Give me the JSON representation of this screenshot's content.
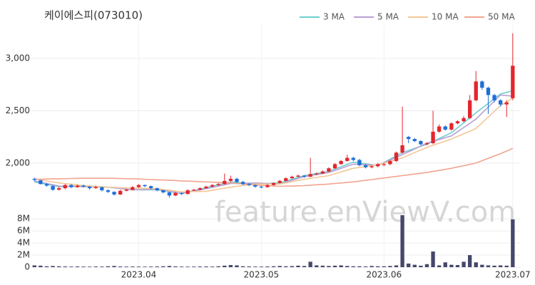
{
  "chart_data": {
    "type": "candlestick",
    "title": "케이에스피(073010)",
    "watermark": "feature.enViewV.com",
    "categories": [
      null,
      null,
      null,
      null,
      null,
      null,
      null,
      null,
      null,
      null,
      null,
      null,
      null,
      null,
      null,
      null,
      null,
      "2023.04",
      null,
      null,
      null,
      null,
      null,
      null,
      null,
      null,
      null,
      null,
      null,
      null,
      null,
      null,
      null,
      null,
      null,
      null,
      null,
      "2023.05",
      null,
      null,
      null,
      null,
      null,
      null,
      null,
      null,
      null,
      null,
      null,
      null,
      null,
      null,
      null,
      null,
      null,
      null,
      null,
      "2023.06",
      null,
      null,
      null,
      null,
      null,
      null,
      null,
      null,
      null,
      null,
      null,
      null,
      null,
      null,
      null,
      null,
      null,
      null,
      null,
      null,
      "2023.07"
    ],
    "ohlc": [
      [
        1850,
        1860,
        1825,
        1840
      ],
      [
        1835,
        1840,
        1795,
        1800
      ],
      [
        1800,
        1810,
        1775,
        1785
      ],
      [
        1780,
        1790,
        1735,
        1745
      ],
      [
        1745,
        1775,
        1740,
        1760
      ],
      [
        1760,
        1800,
        1750,
        1790
      ],
      [
        1790,
        1800,
        1760,
        1770
      ],
      [
        1770,
        1795,
        1765,
        1785
      ],
      [
        1785,
        1795,
        1765,
        1775
      ],
      [
        1775,
        1780,
        1745,
        1760
      ],
      [
        1760,
        1785,
        1755,
        1770
      ],
      [
        1770,
        1775,
        1730,
        1740
      ],
      [
        1740,
        1750,
        1715,
        1725
      ],
      [
        1725,
        1730,
        1690,
        1700
      ],
      [
        1700,
        1745,
        1695,
        1735
      ],
      [
        1735,
        1755,
        1730,
        1745
      ],
      [
        1745,
        1780,
        1740,
        1770
      ],
      [
        1770,
        1800,
        1765,
        1790
      ],
      [
        1790,
        1795,
        1770,
        1780
      ],
      [
        1780,
        1785,
        1750,
        1760
      ],
      [
        1760,
        1765,
        1730,
        1740
      ],
      [
        1740,
        1745,
        1710,
        1720
      ],
      [
        1720,
        1725,
        1670,
        1690
      ],
      [
        1690,
        1725,
        1685,
        1715
      ],
      [
        1715,
        1720,
        1695,
        1705
      ],
      [
        1705,
        1750,
        1700,
        1740
      ],
      [
        1740,
        1755,
        1735,
        1745
      ],
      [
        1745,
        1770,
        1740,
        1760
      ],
      [
        1760,
        1785,
        1755,
        1775
      ],
      [
        1775,
        1800,
        1770,
        1790
      ],
      [
        1790,
        1810,
        1780,
        1800
      ],
      [
        1800,
        1900,
        1795,
        1830
      ],
      [
        1830,
        1880,
        1820,
        1850
      ],
      [
        1850,
        1860,
        1810,
        1820
      ],
      [
        1820,
        1830,
        1790,
        1800
      ],
      [
        1800,
        1810,
        1780,
        1790
      ],
      [
        1790,
        1795,
        1765,
        1775
      ],
      [
        1775,
        1785,
        1760,
        1770
      ],
      [
        1770,
        1800,
        1765,
        1790
      ],
      [
        1790,
        1815,
        1785,
        1810
      ],
      [
        1810,
        1840,
        1805,
        1830
      ],
      [
        1830,
        1865,
        1825,
        1855
      ],
      [
        1855,
        1880,
        1850,
        1870
      ],
      [
        1870,
        1890,
        1865,
        1880
      ],
      [
        1880,
        1885,
        1860,
        1870
      ],
      [
        1870,
        2050,
        1865,
        1895
      ],
      [
        1895,
        1910,
        1885,
        1900
      ],
      [
        1900,
        1930,
        1895,
        1920
      ],
      [
        1920,
        1960,
        1915,
        1950
      ],
      [
        1950,
        2000,
        1945,
        1990
      ],
      [
        1990,
        2030,
        1985,
        2020
      ],
      [
        2020,
        2080,
        2015,
        2050
      ],
      [
        2050,
        2060,
        2020,
        2030
      ],
      [
        2030,
        2040,
        1970,
        1980
      ],
      [
        1980,
        1990,
        1950,
        1960
      ],
      [
        1960,
        1980,
        1950,
        1970
      ],
      [
        1970,
        2000,
        1960,
        1990
      ],
      [
        1985,
        2000,
        1970,
        1990
      ],
      [
        1990,
        2030,
        1980,
        2020
      ],
      [
        2020,
        2110,
        2010,
        2100
      ],
      [
        2100,
        2540,
        2090,
        2170
      ],
      [
        2250,
        2260,
        2190,
        2230
      ],
      [
        2230,
        2240,
        2200,
        2210
      ],
      [
        2210,
        2220,
        2170,
        2180
      ],
      [
        2180,
        2200,
        2170,
        2190
      ],
      [
        2190,
        2500,
        2180,
        2300
      ],
      [
        2300,
        2370,
        2290,
        2350
      ],
      [
        2350,
        2360,
        2310,
        2320
      ],
      [
        2320,
        2390,
        2310,
        2380
      ],
      [
        2380,
        2410,
        2370,
        2400
      ],
      [
        2400,
        2450,
        2390,
        2430
      ],
      [
        2430,
        2650,
        2420,
        2600
      ],
      [
        2600,
        2880,
        2590,
        2780
      ],
      [
        2780,
        2790,
        2700,
        2720
      ],
      [
        2720,
        2730,
        2470,
        2650
      ],
      [
        2650,
        2660,
        2580,
        2600
      ],
      [
        2600,
        2610,
        2540,
        2560
      ],
      [
        2560,
        2600,
        2440,
        2580
      ],
      [
        2620,
        3240,
        2600,
        2930
      ]
    ],
    "volume": [
      300000,
      250000,
      150000,
      200000,
      150000,
      120000,
      100000,
      120000,
      100000,
      90000,
      110000,
      100000,
      150000,
      200000,
      120000,
      100000,
      110000,
      100000,
      90000,
      100000,
      120000,
      150000,
      200000,
      130000,
      100000,
      90000,
      100000,
      110000,
      120000,
      100000,
      150000,
      250000,
      350000,
      300000,
      150000,
      120000,
      100000,
      100000,
      120000,
      150000,
      200000,
      150000,
      180000,
      250000,
      200000,
      900000,
      300000,
      250000,
      200000,
      250000,
      300000,
      200000,
      150000,
      150000,
      120000,
      200000,
      150000,
      150000,
      200000,
      300000,
      8600000,
      600000,
      400000,
      250000,
      500000,
      2600000,
      300000,
      800000,
      400000,
      350000,
      900000,
      2000000,
      800000,
      400000,
      300000,
      250000,
      300000,
      250000,
      7900000
    ],
    "series": [
      {
        "name": "3 MA",
        "color": "#6fcfcf",
        "values": [
          1820,
          1809,
          1798,
          1786,
          1775,
          1776,
          1778,
          1779,
          1780,
          1778,
          1775,
          1773,
          1770,
          1764,
          1758,
          1751,
          1745,
          1745,
          1745,
          1745,
          1745,
          1736,
          1728,
          1719,
          1710,
          1724,
          1738,
          1751,
          1765,
          1779,
          1793,
          1806,
          1820,
          1815,
          1810,
          1805,
          1800,
          1803,
          1805,
          1808,
          1810,
          1828,
          1845,
          1863,
          1880,
          1890,
          1900,
          1910,
          1920,
          1943,
          1965,
          1988,
          2010,
          2001,
          1993,
          1984,
          1975,
          2006,
          2038,
          2069,
          2100,
          2120,
          2140,
          2160,
          2180,
          2208,
          2235,
          2263,
          2290,
          2338,
          2385,
          2433,
          2480,
          2525,
          2570,
          2615,
          2660,
          2675,
          2690
        ]
      },
      {
        "name": "5 MA",
        "color": "#b8a0d4",
        "values": [
          1830,
          1818,
          1805,
          1793,
          1780,
          1779,
          1778,
          1776,
          1775,
          1774,
          1773,
          1771,
          1770,
          1764,
          1758,
          1751,
          1745,
          1746,
          1748,
          1749,
          1750,
          1740,
          1730,
          1720,
          1710,
          1721,
          1733,
          1744,
          1755,
          1768,
          1780,
          1793,
          1805,
          1806,
          1808,
          1809,
          1810,
          1808,
          1805,
          1803,
          1800,
          1818,
          1835,
          1853,
          1870,
          1880,
          1890,
          1900,
          1910,
          1930,
          1950,
          1970,
          1990,
          1988,
          1985,
          1983,
          1980,
          2005,
          2030,
          2055,
          2080,
          2108,
          2135,
          2163,
          2190,
          2208,
          2225,
          2243,
          2260,
          2300,
          2340,
          2380,
          2420,
          2478,
          2535,
          2593,
          2650,
          2645,
          2640
        ]
      },
      {
        "name": "10 MA",
        "color": "#f3c796",
        "values": [
          1850,
          1840,
          1830,
          1820,
          1810,
          1804,
          1798,
          1791,
          1785,
          1781,
          1778,
          1774,
          1770,
          1768,
          1765,
          1763,
          1760,
          1759,
          1758,
          1756,
          1755,
          1748,
          1740,
          1733,
          1725,
          1726,
          1728,
          1729,
          1730,
          1740,
          1750,
          1760,
          1770,
          1778,
          1785,
          1793,
          1800,
          1800,
          1800,
          1800,
          1800,
          1811,
          1823,
          1834,
          1845,
          1854,
          1863,
          1871,
          1880,
          1898,
          1915,
          1933,
          1950,
          1959,
          1968,
          1976,
          1985,
          2001,
          2018,
          2034,
          2050,
          2075,
          2100,
          2125,
          2150,
          2170,
          2190,
          2210,
          2230,
          2255,
          2280,
          2305,
          2330,
          2385,
          2440,
          2495,
          2550,
          2585,
          2620
        ]
      },
      {
        "name": "50 MA",
        "color": "#f2a48f",
        "values": [
          1845,
          1846,
          1848,
          1849,
          1850,
          1851,
          1853,
          1854,
          1855,
          1855,
          1855,
          1855,
          1855,
          1854,
          1853,
          1851,
          1850,
          1848,
          1845,
          1843,
          1840,
          1838,
          1835,
          1833,
          1830,
          1828,
          1825,
          1823,
          1820,
          1818,
          1815,
          1813,
          1810,
          1805,
          1800,
          1795,
          1790,
          1787,
          1784,
          1781,
          1778,
          1780,
          1781,
          1783,
          1785,
          1789,
          1793,
          1796,
          1800,
          1805,
          1810,
          1815,
          1820,
          1828,
          1835,
          1843,
          1850,
          1858,
          1865,
          1873,
          1880,
          1888,
          1895,
          1903,
          1910,
          1920,
          1930,
          1940,
          1950,
          1963,
          1975,
          1988,
          2000,
          2023,
          2045,
          2068,
          2090,
          2115,
          2140
        ]
      }
    ],
    "ylim": [
      1550,
      3320
    ],
    "yticks": [
      {
        "value": 2000,
        "label": "2,000"
      },
      {
        "value": 2500,
        "label": "2,500"
      },
      {
        "value": 3000,
        "label": "3,000"
      }
    ],
    "volume_ylim": [
      0,
      8600000
    ],
    "volume_yticks": [
      0,
      {
        "value": 2000000,
        "label": "2M"
      },
      {
        "value": 4000000,
        "label": "4M"
      },
      {
        "value": 6000000,
        "label": "6M"
      },
      {
        "value": 8000000,
        "label": "8M"
      }
    ],
    "up_color": "#e3262e",
    "down_color": "#1d6fd8",
    "volume_color": "#45476a",
    "grid": true
  }
}
